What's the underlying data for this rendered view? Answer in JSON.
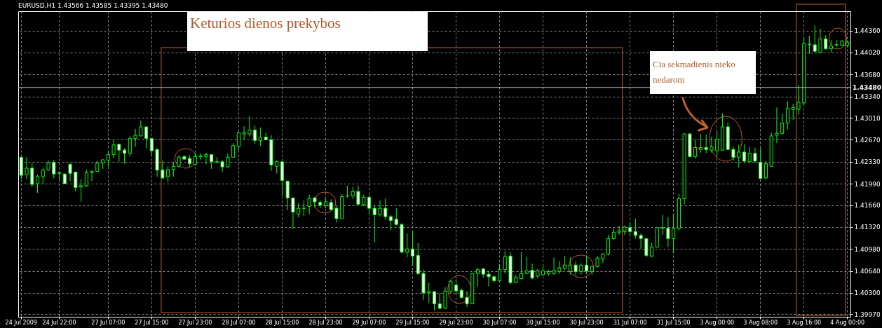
{
  "chart_data": {
    "type": "candlestick",
    "title": "EURUSD,H1 1.43566 1.43585 1.43395 1.43480",
    "color": "#00ff00",
    "grid": true,
    "categories": [
      "24 Jul 2009",
      null,
      null,
      null,
      null,
      null,
      null,
      "24 Jul 22:00",
      null,
      null,
      null,
      null,
      null,
      null,
      null,
      null,
      "27 Jul 07:00",
      null,
      null,
      null,
      null,
      null,
      null,
      null,
      "27 Jul 15:00",
      null,
      null,
      null,
      null,
      null,
      null,
      null,
      "27 Jul 23:00",
      null,
      null,
      null,
      null,
      null,
      null,
      null,
      "28 Jul 07:00",
      null,
      null,
      null,
      null,
      null,
      null,
      null,
      "28 Jul 15:00",
      null,
      null,
      null,
      null,
      null,
      null,
      null,
      "28 Jul 23:00",
      null,
      null,
      null,
      null,
      null,
      null,
      null,
      "29 Jul 07:00",
      null,
      null,
      null,
      null,
      null,
      null,
      null,
      "29 Jul 15:00",
      null,
      null,
      null,
      null,
      null,
      null,
      null,
      "29 Jul 23:00",
      null,
      null,
      null,
      null,
      null,
      null,
      null,
      "30 Jul 07:00",
      null,
      null,
      null,
      null,
      null,
      null,
      null,
      "30 Jul 15:00",
      null,
      null,
      null,
      null,
      null,
      null,
      null,
      "30 Jul 23:00",
      null,
      null,
      null,
      null,
      null,
      null,
      null,
      "31 Jul 07:00",
      null,
      null,
      null,
      null,
      null,
      null,
      null,
      "31 Jul 15:00",
      null,
      null,
      null,
      null,
      null,
      null,
      null,
      "3 Aug 00:00",
      null,
      null,
      null,
      null,
      null,
      null,
      null,
      "3 Aug 08:00",
      null,
      null,
      null,
      null,
      null,
      null,
      null,
      "3 Aug 16:00",
      null,
      null,
      null,
      null,
      null,
      null,
      null,
      "4 Aug 00:00"
    ],
    "ohlc": [
      [
        1.424,
        1.424,
        1.4206,
        1.4212
      ],
      [
        1.4213,
        1.424,
        1.4206,
        1.4223
      ],
      [
        1.4223,
        1.4231,
        1.4194,
        1.4198
      ],
      [
        1.4199,
        1.4213,
        1.4185,
        1.421
      ],
      [
        1.421,
        1.4224,
        1.4199,
        1.422
      ],
      [
        1.422,
        1.4235,
        1.4219,
        1.4231
      ],
      [
        1.4232,
        1.4236,
        1.4207,
        1.4214
      ],
      [
        1.4215,
        1.4218,
        1.4204,
        1.4216
      ],
      [
        1.4214,
        1.4215,
        1.4199,
        1.4199
      ],
      [
        1.4229,
        1.4231,
        1.4203,
        1.4215
      ],
      [
        1.4217,
        1.4217,
        1.4187,
        1.4193
      ],
      [
        1.4194,
        1.4206,
        1.4171,
        1.4196
      ],
      [
        1.4196,
        1.4221,
        1.4194,
        1.4216
      ],
      [
        1.4216,
        1.422,
        1.4203,
        1.4218
      ],
      [
        1.4218,
        1.4234,
        1.4218,
        1.4231
      ],
      [
        1.4231,
        1.4237,
        1.4222,
        1.4236
      ],
      [
        1.4235,
        1.4249,
        1.4225,
        1.4244
      ],
      [
        1.4244,
        1.4267,
        1.4238,
        1.4259
      ],
      [
        1.426,
        1.4261,
        1.4233,
        1.4251
      ],
      [
        1.4251,
        1.4254,
        1.423,
        1.4246
      ],
      [
        1.4246,
        1.4273,
        1.4241,
        1.4269
      ],
      [
        1.4269,
        1.4284,
        1.4256,
        1.4274
      ],
      [
        1.4273,
        1.4297,
        1.4272,
        1.4287
      ],
      [
        1.4287,
        1.4287,
        1.4254,
        1.4269
      ],
      [
        1.4269,
        1.4269,
        1.4242,
        1.425
      ],
      [
        1.4252,
        1.4254,
        1.421,
        1.422
      ],
      [
        1.422,
        1.4235,
        1.4206,
        1.4208
      ],
      [
        1.421,
        1.4226,
        1.4201,
        1.4221
      ],
      [
        1.4221,
        1.4233,
        1.421,
        1.4226
      ],
      [
        1.4226,
        1.4243,
        1.4224,
        1.424
      ],
      [
        1.4241,
        1.4243,
        1.4236,
        1.4237
      ],
      [
        1.4238,
        1.4243,
        1.4225,
        1.423
      ],
      [
        1.4229,
        1.4247,
        1.4228,
        1.4241
      ],
      [
        1.4241,
        1.4246,
        1.4235,
        1.4242
      ],
      [
        1.4241,
        1.4247,
        1.4229,
        1.4244
      ],
      [
        1.4244,
        1.4244,
        1.4222,
        1.4233
      ],
      [
        1.4233,
        1.424,
        1.423,
        1.4233
      ],
      [
        1.4233,
        1.4235,
        1.4217,
        1.4225
      ],
      [
        1.4225,
        1.4246,
        1.4224,
        1.424
      ],
      [
        1.424,
        1.4262,
        1.424,
        1.4258
      ],
      [
        1.4257,
        1.4279,
        1.4251,
        1.4278
      ],
      [
        1.4276,
        1.4288,
        1.4267,
        1.4278
      ],
      [
        1.4276,
        1.4304,
        1.4272,
        1.4282
      ],
      [
        1.4282,
        1.4289,
        1.4261,
        1.4266
      ],
      [
        1.4266,
        1.4286,
        1.4257,
        1.4271
      ],
      [
        1.4271,
        1.4278,
        1.4267,
        1.4267
      ],
      [
        1.4267,
        1.4274,
        1.4219,
        1.4228
      ],
      [
        1.4226,
        1.4235,
        1.4215,
        1.4233
      ],
      [
        1.4233,
        1.4233,
        1.418,
        1.4204
      ],
      [
        1.4203,
        1.4203,
        1.4158,
        1.4177
      ],
      [
        1.4177,
        1.4177,
        1.4129,
        1.4155
      ],
      [
        1.4152,
        1.4169,
        1.4147,
        1.4161
      ],
      [
        1.4161,
        1.4173,
        1.4149,
        1.4161
      ],
      [
        1.4164,
        1.4182,
        1.4152,
        1.4176
      ],
      [
        1.4177,
        1.4179,
        1.4162,
        1.4171
      ],
      [
        1.417,
        1.4173,
        1.4161,
        1.4166
      ],
      [
        1.4165,
        1.4177,
        1.4161,
        1.4171
      ],
      [
        1.417,
        1.4175,
        1.4157,
        1.4159
      ],
      [
        1.4161,
        1.4164,
        1.4139,
        1.4145
      ],
      [
        1.4145,
        1.4183,
        1.4145,
        1.4179
      ],
      [
        1.418,
        1.4196,
        1.4177,
        1.418
      ],
      [
        1.418,
        1.4194,
        1.4175,
        1.4187
      ],
      [
        1.4187,
        1.4196,
        1.4167,
        1.4167
      ],
      [
        1.4167,
        1.4182,
        1.4164,
        1.4178
      ],
      [
        1.4178,
        1.4182,
        1.4152,
        1.4161
      ],
      [
        1.4161,
        1.4166,
        1.4108,
        1.4151
      ],
      [
        1.4151,
        1.4173,
        1.4148,
        1.4161
      ],
      [
        1.4161,
        1.4176,
        1.4143,
        1.4148
      ],
      [
        1.4148,
        1.4151,
        1.4127,
        1.4142
      ],
      [
        1.4144,
        1.4161,
        1.4134,
        1.4136
      ],
      [
        1.4136,
        1.4138,
        1.4092,
        1.4093
      ],
      [
        1.4093,
        1.4122,
        1.4085,
        1.4098
      ],
      [
        1.4098,
        1.4125,
        1.4072,
        1.4087
      ],
      [
        1.4088,
        1.4107,
        1.4058,
        1.406
      ],
      [
        1.406,
        1.4066,
        1.4019,
        1.403
      ],
      [
        1.403,
        1.4046,
        1.4014,
        1.4032
      ],
      [
        1.4032,
        1.4032,
        1.4003,
        1.4013
      ],
      [
        1.4013,
        1.403,
        1.4005,
        1.4006
      ],
      [
        1.4006,
        1.4039,
        1.4005,
        1.4033
      ],
      [
        1.4032,
        1.405,
        1.403,
        1.4048
      ],
      [
        1.4042,
        1.4051,
        1.4027,
        1.4033
      ],
      [
        1.4034,
        1.4037,
        1.4021,
        1.4023
      ],
      [
        1.4023,
        1.4033,
        1.4008,
        1.4013
      ],
      [
        1.4013,
        1.406,
        1.4013,
        1.406
      ],
      [
        1.406,
        1.4069,
        1.404,
        1.4066
      ],
      [
        1.4067,
        1.4069,
        1.4054,
        1.4059
      ],
      [
        1.4059,
        1.4064,
        1.404,
        1.4055
      ],
      [
        1.4055,
        1.4056,
        1.4046,
        1.4049
      ],
      [
        1.4049,
        1.4074,
        1.4048,
        1.4066
      ],
      [
        1.4066,
        1.4095,
        1.406,
        1.4086
      ],
      [
        1.4087,
        1.4093,
        1.4043,
        1.4046
      ],
      [
        1.4046,
        1.4058,
        1.4045,
        1.4054
      ],
      [
        1.4052,
        1.4093,
        1.4051,
        1.406
      ],
      [
        1.406,
        1.4086,
        1.4059,
        1.4064
      ],
      [
        1.4065,
        1.4075,
        1.4051,
        1.4053
      ],
      [
        1.4056,
        1.4067,
        1.4053,
        1.4064
      ],
      [
        1.4058,
        1.4074,
        1.4056,
        1.4064
      ],
      [
        1.406,
        1.4066,
        1.4056,
        1.4063
      ],
      [
        1.406,
        1.4085,
        1.4058,
        1.4065
      ],
      [
        1.4063,
        1.4079,
        1.4059,
        1.4069
      ],
      [
        1.4068,
        1.4087,
        1.4065,
        1.4073
      ],
      [
        1.4063,
        1.4085,
        1.4058,
        1.4073
      ],
      [
        1.4073,
        1.4078,
        1.4058,
        1.4063
      ],
      [
        1.4063,
        1.4076,
        1.4058,
        1.4073
      ],
      [
        1.4073,
        1.4087,
        1.406,
        1.4064
      ],
      [
        1.4063,
        1.4072,
        1.4058,
        1.4071
      ],
      [
        1.4071,
        1.4087,
        1.4069,
        1.4084
      ],
      [
        1.4083,
        1.4092,
        1.4076,
        1.409
      ],
      [
        1.409,
        1.412,
        1.4088,
        1.4114
      ],
      [
        1.4114,
        1.413,
        1.4112,
        1.4124
      ],
      [
        1.4124,
        1.4134,
        1.412,
        1.4126
      ],
      [
        1.4125,
        1.4134,
        1.412,
        1.4132
      ],
      [
        1.4131,
        1.4139,
        1.4118,
        1.4125
      ],
      [
        1.4125,
        1.4145,
        1.4114,
        1.4119
      ],
      [
        1.4119,
        1.4122,
        1.4098,
        1.4114
      ],
      [
        1.4114,
        1.4114,
        1.4085,
        1.4088
      ],
      [
        1.4087,
        1.4108,
        1.4085,
        1.4101
      ],
      [
        1.4101,
        1.4132,
        1.41,
        1.4131
      ],
      [
        1.413,
        1.4151,
        1.412,
        1.4131
      ],
      [
        1.413,
        1.4147,
        1.4101,
        1.4114
      ],
      [
        1.4114,
        1.4152,
        1.4092,
        1.413
      ],
      [
        1.413,
        1.4183,
        1.4126,
        1.4176
      ],
      [
        1.4176,
        1.4277,
        1.4167,
        1.4276
      ],
      [
        1.4276,
        1.4278,
        1.424,
        1.4241
      ],
      [
        1.4241,
        1.4267,
        1.4238,
        1.4255
      ],
      [
        1.4252,
        1.4276,
        1.4247,
        1.4255
      ],
      [
        1.4255,
        1.4275,
        1.4246,
        1.4252
      ],
      [
        1.4251,
        1.4272,
        1.4247,
        1.4256
      ],
      [
        1.425,
        1.428,
        1.4241,
        1.4268
      ],
      [
        1.4251,
        1.4308,
        1.425,
        1.4287
      ],
      [
        1.4287,
        1.4294,
        1.4251,
        1.4252
      ],
      [
        1.4252,
        1.4257,
        1.4235,
        1.424
      ],
      [
        1.424,
        1.4259,
        1.4224,
        1.4248
      ],
      [
        1.4248,
        1.426,
        1.4231,
        1.4234
      ],
      [
        1.4233,
        1.4256,
        1.4231,
        1.4246
      ],
      [
        1.4246,
        1.4255,
        1.4231,
        1.4234
      ],
      [
        1.4232,
        1.4254,
        1.4206,
        1.4207
      ],
      [
        1.4208,
        1.4234,
        1.4205,
        1.423
      ],
      [
        1.4226,
        1.4278,
        1.4225,
        1.4273
      ],
      [
        1.4274,
        1.4317,
        1.4262,
        1.4277
      ],
      [
        1.4277,
        1.4308,
        1.4275,
        1.4293
      ],
      [
        1.4293,
        1.4327,
        1.4283,
        1.4316
      ],
      [
        1.4314,
        1.4323,
        1.4298,
        1.4317
      ],
      [
        1.4314,
        1.4352,
        1.4306,
        1.4325
      ],
      [
        1.4324,
        1.4425,
        1.4321,
        1.4416
      ],
      [
        1.4414,
        1.4428,
        1.44,
        1.4415
      ],
      [
        1.4414,
        1.4444,
        1.4402,
        1.4404
      ],
      [
        1.4402,
        1.4439,
        1.4401,
        1.4423
      ],
      [
        1.4423,
        1.4429,
        1.4406,
        1.4408
      ],
      [
        1.4408,
        1.4421,
        1.4402,
        1.4412
      ],
      [
        1.4414,
        1.4421,
        1.4411,
        1.4414
      ],
      [
        1.4413,
        1.4421,
        1.4412,
        1.442
      ],
      [
        1.4413,
        1.4421,
        1.441,
        1.4418
      ]
    ],
    "ylim": [
      1.3993,
      1.4466
    ],
    "yticks": [
      {
        "value": 1.4436,
        "label": "1.44360"
      },
      {
        "value": 1.4402,
        "label": "1.44020"
      },
      {
        "value": 1.4368,
        "label": "1.43680"
      },
      {
        "value": 1.4334,
        "label": "1.43340"
      },
      {
        "value": 1.4301,
        "label": "1.43010"
      },
      {
        "value": 1.4267,
        "label": "1.42670"
      },
      {
        "value": 1.4233,
        "label": "1.42330"
      },
      {
        "value": 1.4199,
        "label": "1.41990"
      },
      {
        "value": 1.4166,
        "label": "1.41660"
      },
      {
        "value": 1.4132,
        "label": "1.41320"
      },
      {
        "value": 1.4098,
        "label": "1.40980"
      },
      {
        "value": 1.4064,
        "label": "1.40640"
      },
      {
        "value": 1.403,
        "label": "1.40300"
      },
      {
        "value": 1.3997,
        "label": "1.39970"
      }
    ],
    "ref_lines": [
      {
        "axis": "y",
        "value": 1.4348,
        "label": "1.43480",
        "color": "#c0c0c0"
      }
    ],
    "annotations": [
      "Keturios dienos prekybos",
      "Cia sekmadienis nieko nedarom"
    ]
  }
}
